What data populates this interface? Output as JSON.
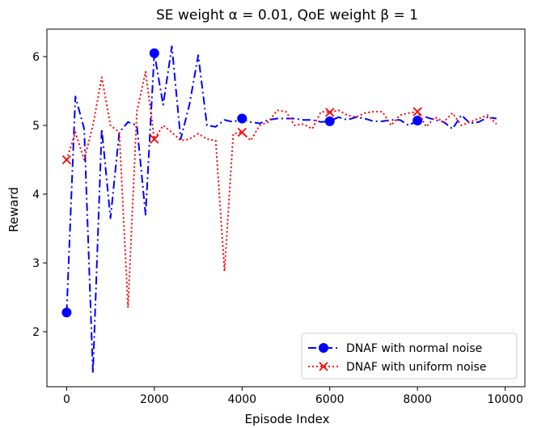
{
  "chart_data": {
    "type": "line",
    "title": "SE weight α = 0.01, QoE weight β = 1",
    "xlabel": "Episode Index",
    "ylabel": "Reward",
    "xlim": [
      -450,
      10450
    ],
    "ylim": [
      1.2,
      6.4
    ],
    "xticks": [
      0,
      2000,
      4000,
      6000,
      8000,
      10000
    ],
    "yticks": [
      2,
      3,
      4,
      5,
      6
    ],
    "grid": false,
    "legend_position": "lower-right",
    "series": [
      {
        "name": "DNAF with normal noise",
        "color": "#0000ff",
        "linestyle": "dashdot",
        "marker": "circle",
        "marker_indices": [
          0,
          10,
          20,
          30,
          40
        ],
        "x": [
          0,
          200,
          400,
          600,
          800,
          1000,
          1200,
          1400,
          1600,
          1800,
          2000,
          2200,
          2400,
          2600,
          2800,
          3000,
          3200,
          3400,
          3600,
          3800,
          4000,
          4200,
          4400,
          4600,
          4800,
          5000,
          5200,
          5400,
          5600,
          5800,
          6000,
          6200,
          6400,
          6600,
          6800,
          7000,
          7200,
          7400,
          7600,
          7800,
          8000,
          8200,
          8400,
          8600,
          8800,
          9000,
          9200,
          9400,
          9600,
          9800
        ],
        "values": [
          2.28,
          5.42,
          4.95,
          1.4,
          4.95,
          3.65,
          4.9,
          5.05,
          5.0,
          3.7,
          6.05,
          5.3,
          6.15,
          4.8,
          5.3,
          6.02,
          5.0,
          4.98,
          5.08,
          5.05,
          5.1,
          5.05,
          5.03,
          5.08,
          5.1,
          5.1,
          5.1,
          5.08,
          5.08,
          5.05,
          5.06,
          5.12,
          5.08,
          5.12,
          5.1,
          5.06,
          5.06,
          5.08,
          5.08,
          5.0,
          5.07,
          5.12,
          5.08,
          5.05,
          4.95,
          5.15,
          5.03,
          5.05,
          5.12,
          5.1
        ]
      },
      {
        "name": "DNAF with uniform noise",
        "color": "#ff0000",
        "linestyle": "dotted",
        "marker": "x",
        "marker_indices": [
          0,
          10,
          20,
          30,
          40
        ],
        "x": [
          0,
          200,
          400,
          600,
          800,
          1000,
          1200,
          1400,
          1600,
          1800,
          2000,
          2200,
          2400,
          2600,
          2800,
          3000,
          3200,
          3400,
          3600,
          3800,
          4000,
          4200,
          4400,
          4600,
          4800,
          5000,
          5200,
          5400,
          5600,
          5800,
          6000,
          6200,
          6400,
          6600,
          6800,
          7000,
          7200,
          7400,
          7600,
          7800,
          8000,
          8200,
          8400,
          8600,
          8800,
          9000,
          9200,
          9400,
          9600,
          9800
        ],
        "values": [
          4.5,
          4.9,
          4.5,
          5.0,
          5.7,
          5.0,
          4.9,
          2.35,
          5.2,
          5.78,
          4.8,
          5.0,
          4.9,
          4.78,
          4.8,
          4.88,
          4.8,
          4.78,
          2.88,
          4.88,
          4.9,
          4.78,
          5.0,
          5.05,
          5.22,
          5.2,
          5.0,
          5.02,
          4.95,
          5.2,
          5.19,
          5.22,
          5.15,
          5.12,
          5.18,
          5.2,
          5.2,
          5.0,
          5.15,
          5.18,
          5.2,
          4.98,
          5.12,
          5.05,
          5.18,
          5.0,
          5.05,
          5.1,
          5.15,
          5.02
        ]
      }
    ]
  }
}
